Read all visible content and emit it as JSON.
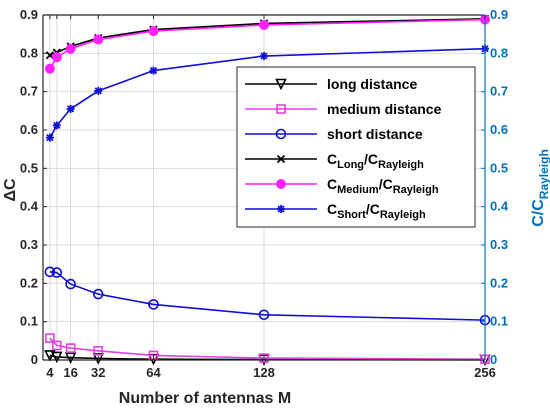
{
  "chart_data": {
    "type": "line",
    "xlabel": "Number of antennas M",
    "ylabel_left": "ΔC",
    "ylabel_right": {
      "main": "C/C",
      "sub": "Rayleigh"
    },
    "x_ticks": [
      4,
      8,
      16,
      32,
      64,
      128,
      256
    ],
    "x_tick_labels": [
      "4",
      "16",
      "32",
      "64",
      "128",
      "256"
    ],
    "x_tick_label_values": [
      4,
      16,
      32,
      64,
      128,
      256
    ],
    "xlim": [
      0,
      256
    ],
    "y_left_lim": [
      0,
      0.9
    ],
    "y_right_lim": [
      0,
      0.9
    ],
    "y_left_ticks": [
      "0",
      "0.1",
      "0.2",
      "0.3",
      "0.4",
      "0.5",
      "0.6",
      "0.7",
      "0.8",
      "0.9"
    ],
    "y_right_ticks": [
      "0",
      "0.1",
      "0.2",
      "0.3",
      "0.4",
      "0.5",
      "0.6",
      "0.7",
      "0.8",
      "0.9"
    ],
    "grid": true,
    "legend_placement": "center-right",
    "x": [
      4,
      8,
      16,
      32,
      64,
      128,
      256
    ],
    "series": [
      {
        "name": "long distance",
        "axis": "left",
        "color": "#000000",
        "marker": "triangle-down",
        "values": [
          0.012,
          0.008,
          0.006,
          0.004,
          0.002,
          0.001,
          0.0005
        ]
      },
      {
        "name": "medium distance",
        "axis": "left",
        "color": "#E040E0",
        "marker": "square",
        "values": [
          0.057,
          0.038,
          0.031,
          0.024,
          0.012,
          0.005,
          0.002
        ]
      },
      {
        "name": "short distance",
        "axis": "left",
        "color": "#1010D0",
        "marker": "circle",
        "values": [
          0.23,
          0.228,
          0.198,
          0.172,
          0.145,
          0.118,
          0.104
        ]
      },
      {
        "name": "C_Long/C_Rayleigh",
        "label": {
          "c1": "C",
          "s1": "Long",
          "mid": "/C",
          "s2": "Rayleigh"
        },
        "axis": "right",
        "color": "#000000",
        "marker": "x",
        "values": [
          0.795,
          0.802,
          0.818,
          0.84,
          0.862,
          0.878,
          0.89
        ]
      },
      {
        "name": "C_Medium/C_Rayleigh",
        "label": {
          "c1": "C",
          "s1": "Medium",
          "mid": "/C",
          "s2": "Rayleigh"
        },
        "axis": "right",
        "color": "#FF20FF",
        "marker": "filled-circle",
        "values": [
          0.76,
          0.79,
          0.812,
          0.836,
          0.858,
          0.874,
          0.888
        ]
      },
      {
        "name": "C_Short/C_Rayleigh",
        "label": {
          "c1": "C",
          "s1": "Short",
          "mid": "/C",
          "s2": "Rayleigh"
        },
        "axis": "right",
        "color": "#1010D0",
        "marker": "asterisk",
        "values": [
          0.58,
          0.612,
          0.655,
          0.702,
          0.755,
          0.793,
          0.812
        ]
      }
    ]
  }
}
